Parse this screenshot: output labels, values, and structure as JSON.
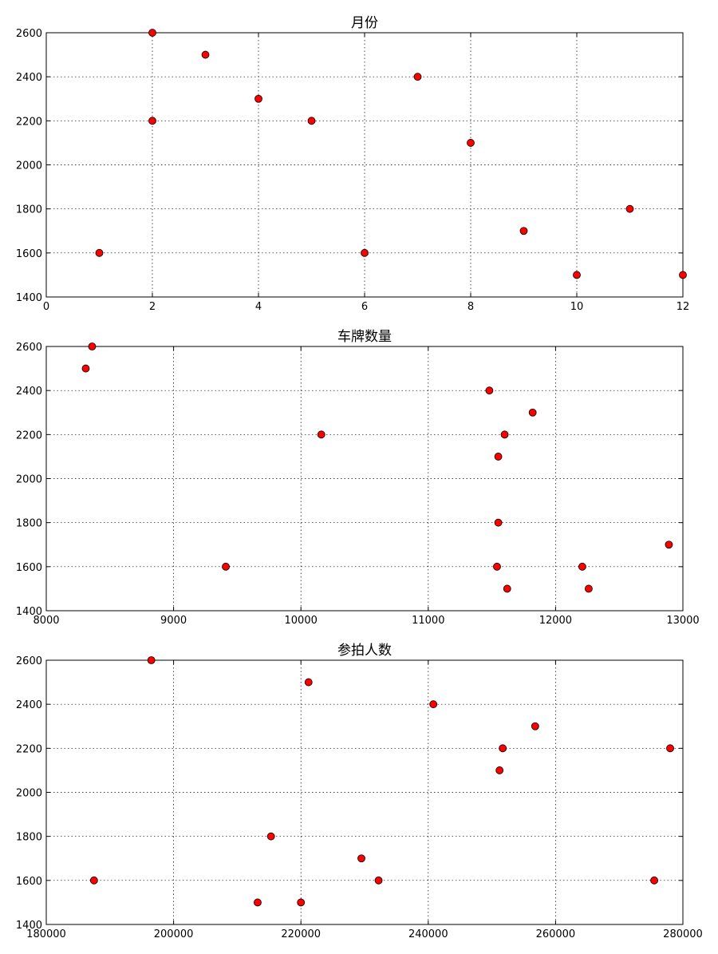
{
  "colors": {
    "marker": "#ff0000",
    "marker_edge": "#000000",
    "background": "#ffffff"
  },
  "chart_data": [
    {
      "type": "scatter",
      "title": "月份",
      "xlabel": "",
      "ylabel": "",
      "xlim": [
        0,
        12
      ],
      "ylim": [
        1400,
        2600
      ],
      "xticks": [
        0,
        2,
        4,
        6,
        8,
        10,
        12
      ],
      "yticks": [
        1400,
        1600,
        1800,
        2000,
        2200,
        2400,
        2600
      ],
      "xtick_labels": [
        "0",
        "2",
        "4",
        "6",
        "8",
        "10",
        "12"
      ],
      "ytick_labels": [
        "1400",
        "1600",
        "1800",
        "2000",
        "2200",
        "2400",
        "2600"
      ],
      "grid": true,
      "marker_color": "#ff0000",
      "points": [
        {
          "x": 1,
          "y": 1600
        },
        {
          "x": 2,
          "y": 2200
        },
        {
          "x": 2,
          "y": 2600
        },
        {
          "x": 3,
          "y": 2500
        },
        {
          "x": 4,
          "y": 2300
        },
        {
          "x": 5,
          "y": 2200
        },
        {
          "x": 6,
          "y": 1600
        },
        {
          "x": 7,
          "y": 2400
        },
        {
          "x": 8,
          "y": 2100
        },
        {
          "x": 9,
          "y": 1700
        },
        {
          "x": 10,
          "y": 1500
        },
        {
          "x": 11,
          "y": 1800
        },
        {
          "x": 12,
          "y": 1500
        }
      ]
    },
    {
      "type": "scatter",
      "title": "车牌数量",
      "xlabel": "",
      "ylabel": "",
      "xlim": [
        8000,
        13000
      ],
      "ylim": [
        1400,
        2600
      ],
      "xticks": [
        8000,
        9000,
        10000,
        11000,
        12000,
        13000
      ],
      "yticks": [
        1400,
        1600,
        1800,
        2000,
        2200,
        2400,
        2600
      ],
      "xtick_labels": [
        "8000",
        "9000",
        "10000",
        "11000",
        "12000",
        "13000"
      ],
      "ytick_labels": [
        "1400",
        "1600",
        "1800",
        "2000",
        "2200",
        "2400",
        "2600"
      ],
      "grid": true,
      "marker_color": "#ff0000",
      "points": [
        {
          "x": 8360,
          "y": 2600
        },
        {
          "x": 8310,
          "y": 2500
        },
        {
          "x": 9410,
          "y": 1600
        },
        {
          "x": 10160,
          "y": 2200
        },
        {
          "x": 11480,
          "y": 2400
        },
        {
          "x": 11820,
          "y": 2300
        },
        {
          "x": 11600,
          "y": 2200
        },
        {
          "x": 11550,
          "y": 2100
        },
        {
          "x": 11550,
          "y": 1800
        },
        {
          "x": 11540,
          "y": 1600
        },
        {
          "x": 11620,
          "y": 1500
        },
        {
          "x": 12210,
          "y": 1600
        },
        {
          "x": 12260,
          "y": 1500
        },
        {
          "x": 12890,
          "y": 1700
        }
      ]
    },
    {
      "type": "scatter",
      "title": "参拍人数",
      "xlabel": "",
      "ylabel": "",
      "xlim": [
        180000,
        280000
      ],
      "ylim": [
        1400,
        2600
      ],
      "xticks": [
        180000,
        200000,
        220000,
        240000,
        260000,
        280000
      ],
      "yticks": [
        1400,
        1600,
        1800,
        2000,
        2200,
        2400,
        2600
      ],
      "xtick_labels": [
        "180000",
        "200000",
        "220000",
        "240000",
        "260000",
        "280000"
      ],
      "ytick_labels": [
        "1400",
        "1600",
        "1800",
        "2000",
        "2200",
        "2400",
        "2600"
      ],
      "grid": true,
      "marker_color": "#ff0000",
      "points": [
        {
          "x": 196500,
          "y": 2600
        },
        {
          "x": 187500,
          "y": 1600
        },
        {
          "x": 221200,
          "y": 2500
        },
        {
          "x": 240800,
          "y": 2400
        },
        {
          "x": 256800,
          "y": 2300
        },
        {
          "x": 251700,
          "y": 2200
        },
        {
          "x": 251200,
          "y": 2100
        },
        {
          "x": 278000,
          "y": 2200
        },
        {
          "x": 215300,
          "y": 1800
        },
        {
          "x": 229500,
          "y": 1700
        },
        {
          "x": 213200,
          "y": 1500
        },
        {
          "x": 220000,
          "y": 1500
        },
        {
          "x": 232200,
          "y": 1600
        },
        {
          "x": 275500,
          "y": 1600
        }
      ]
    }
  ]
}
